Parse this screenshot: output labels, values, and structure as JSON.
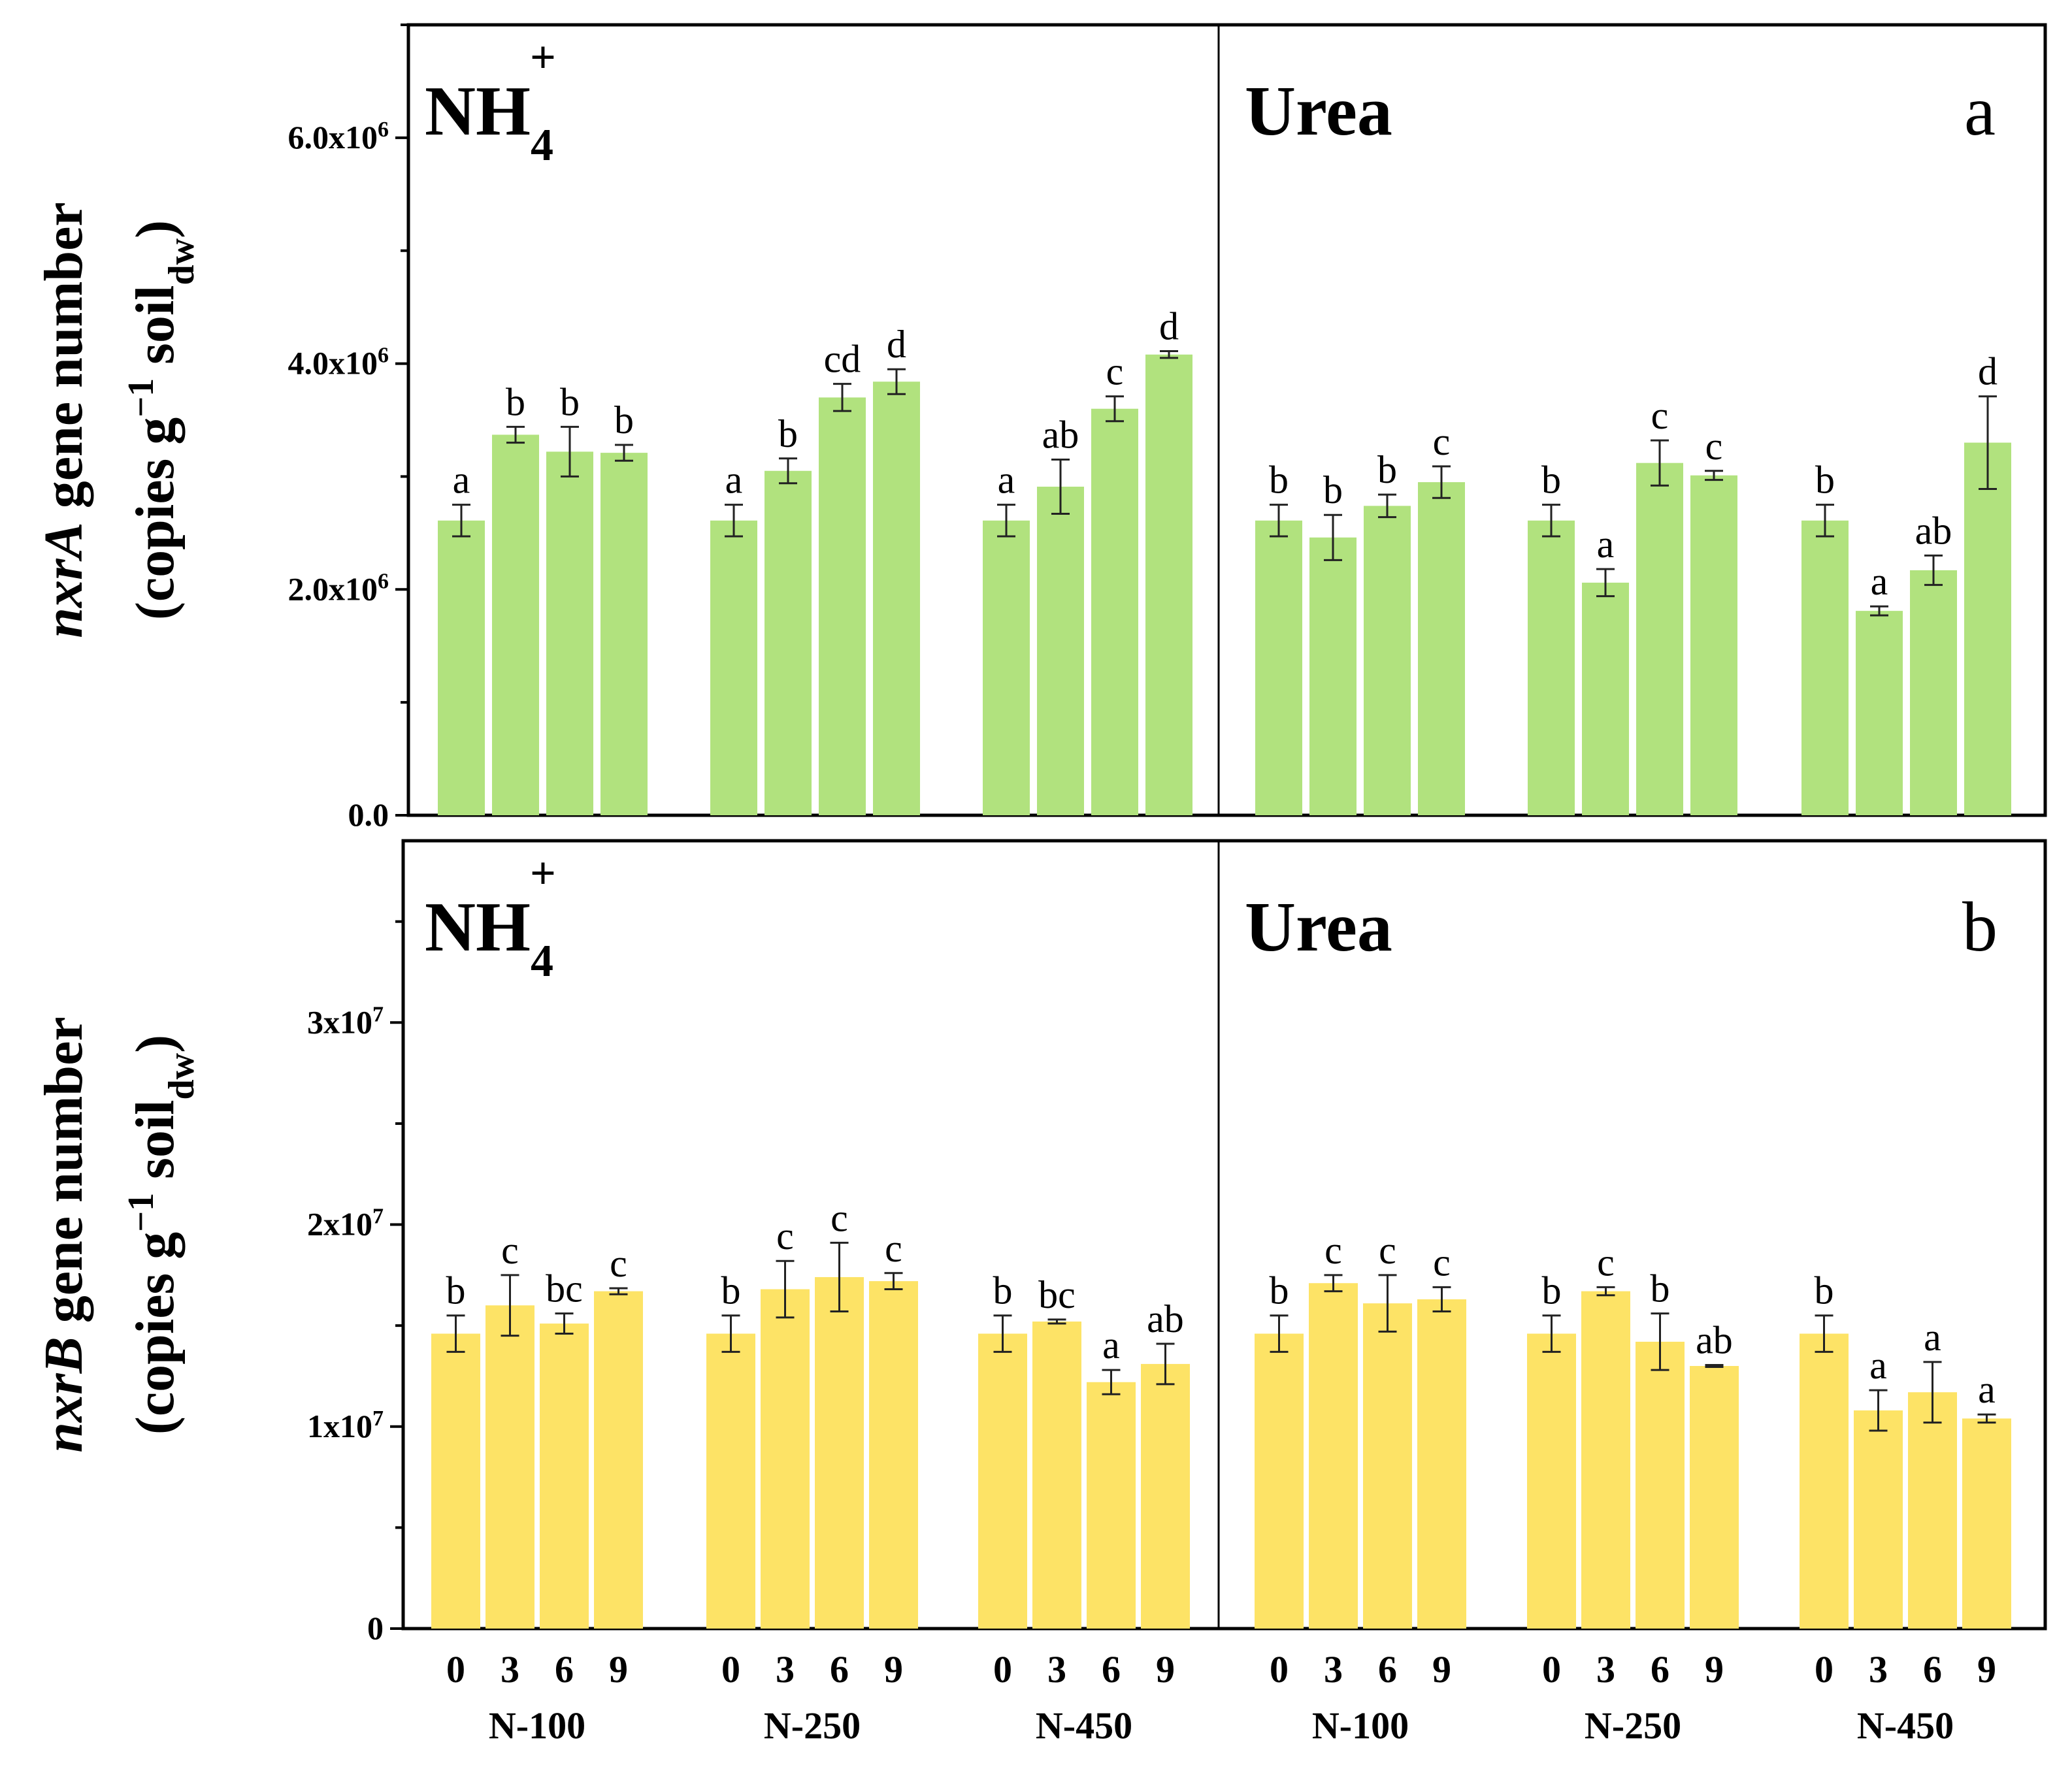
{
  "chart_data": [
    {
      "type": "bar",
      "panel_letter": "a",
      "sections": [
        "NH4+",
        "Urea"
      ],
      "section_titles": [
        {
          "base": "NH",
          "sub": "4",
          "sup": "+"
        },
        {
          "base": "Urea"
        }
      ],
      "groups": [
        "N-100",
        "N-250",
        "N-450"
      ],
      "categories": [
        "0",
        "3",
        "6",
        "9"
      ],
      "ylim": [
        0,
        7000000
      ],
      "yticks": [
        {
          "value": 0,
          "label": "0.0"
        },
        {
          "value": 2000000,
          "label": "2.0x10",
          "exp": "6"
        },
        {
          "value": 4000000,
          "label": "4.0x10",
          "exp": "6"
        },
        {
          "value": 6000000,
          "label": "6.0x10",
          "exp": "6"
        }
      ],
      "minor_step": 1000000,
      "ylabel": {
        "gene": "nxrA",
        "rest": " gene number",
        "line2": "(copies g",
        "line2_sup": "−1",
        "line2_mid": " soil",
        "line2_sub": "dw",
        "line2_end": ")"
      },
      "color": "#b1e27e",
      "series": [
        {
          "name": "NH4+ N-100",
          "values": [
            2610000,
            3370000,
            3220000,
            3210000
          ],
          "errors": [
            140000,
            70000,
            220000,
            70000
          ],
          "letters": [
            "a",
            "b",
            "b",
            "b"
          ]
        },
        {
          "name": "NH4+ N-250",
          "values": [
            2610000,
            3050000,
            3700000,
            3840000
          ],
          "errors": [
            140000,
            110000,
            120000,
            110000
          ],
          "letters": [
            "a",
            "b",
            "cd",
            "d"
          ]
        },
        {
          "name": "NH4+ N-450",
          "values": [
            2610000,
            2910000,
            3600000,
            4080000
          ],
          "errors": [
            140000,
            240000,
            110000,
            30000
          ],
          "letters": [
            "a",
            "ab",
            "c",
            "d"
          ]
        },
        {
          "name": "Urea N-100",
          "values": [
            2610000,
            2460000,
            2740000,
            2950000
          ],
          "errors": [
            140000,
            200000,
            100000,
            140000
          ],
          "letters": [
            "b",
            "b",
            "b",
            "c"
          ]
        },
        {
          "name": "Urea N-250",
          "values": [
            2610000,
            2060000,
            3120000,
            3010000
          ],
          "errors": [
            140000,
            120000,
            200000,
            40000
          ],
          "letters": [
            "b",
            "a",
            "c",
            "c"
          ]
        },
        {
          "name": "Urea N-450",
          "values": [
            2610000,
            1810000,
            2170000,
            3300000
          ],
          "errors": [
            140000,
            40000,
            130000,
            410000
          ],
          "letters": [
            "b",
            "a",
            "ab",
            "d"
          ]
        }
      ]
    },
    {
      "type": "bar",
      "panel_letter": "b",
      "sections": [
        "NH4+",
        "Urea"
      ],
      "section_titles": [
        {
          "base": "NH",
          "sub": "4",
          "sup": "+"
        },
        {
          "base": "Urea"
        }
      ],
      "groups": [
        "N-100",
        "N-250",
        "N-450"
      ],
      "categories": [
        "0",
        "3",
        "6",
        "9"
      ],
      "ylim": [
        0,
        39000000
      ],
      "yticks": [
        {
          "value": 0,
          "label": "0"
        },
        {
          "value": 10000000,
          "label": "1x10",
          "exp": "7"
        },
        {
          "value": 20000000,
          "label": "2x10",
          "exp": "7"
        },
        {
          "value": 30000000,
          "label": "3x10",
          "exp": "7"
        }
      ],
      "minor_step": 5000000,
      "ylabel": {
        "gene": "nxrB",
        "rest": " gene number",
        "line2": "(copies g",
        "line2_sup": "−1",
        "line2_mid": " soil",
        "line2_sub": "dw",
        "line2_end": ")"
      },
      "color": "#fde366",
      "series": [
        {
          "name": "NH4+ N-100",
          "values": [
            14600000,
            16000000,
            15100000,
            16700000
          ],
          "errors": [
            900000,
            1500000,
            500000,
            150000
          ],
          "letters": [
            "b",
            "c",
            "bc",
            "c"
          ]
        },
        {
          "name": "NH4+ N-250",
          "values": [
            14600000,
            16800000,
            17400000,
            17200000
          ],
          "errors": [
            900000,
            1400000,
            1700000,
            400000
          ],
          "letters": [
            "b",
            "c",
            "c",
            "c"
          ]
        },
        {
          "name": "NH4+ N-450",
          "values": [
            14600000,
            15200000,
            12200000,
            13100000
          ],
          "errors": [
            900000,
            100000,
            600000,
            1000000
          ],
          "letters": [
            "b",
            "bc",
            "a",
            "ab"
          ]
        },
        {
          "name": "Urea N-100",
          "values": [
            14600000,
            17100000,
            16100000,
            16300000
          ],
          "errors": [
            900000,
            400000,
            1400000,
            600000
          ],
          "letters": [
            "b",
            "c",
            "c",
            "c"
          ]
        },
        {
          "name": "Urea N-250",
          "values": [
            14600000,
            16700000,
            14200000,
            13000000
          ],
          "errors": [
            900000,
            200000,
            1400000,
            50000
          ],
          "letters": [
            "b",
            "c",
            "b",
            "ab"
          ]
        },
        {
          "name": "Urea N-450",
          "values": [
            14600000,
            10800000,
            11700000,
            10400000
          ],
          "errors": [
            900000,
            1000000,
            1500000,
            200000
          ],
          "letters": [
            "b",
            "a",
            "a",
            "a"
          ]
        }
      ]
    }
  ]
}
